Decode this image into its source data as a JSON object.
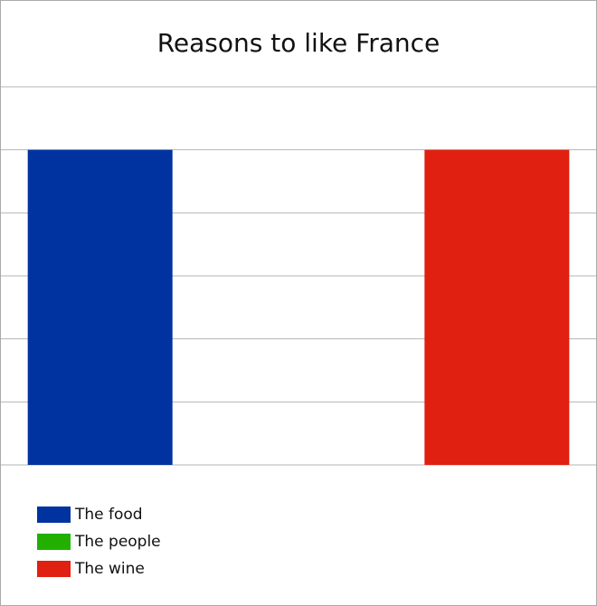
{
  "chart_data": {
    "type": "bar",
    "title": "Reasons to like France",
    "xlabel": "",
    "ylabel": "",
    "ylim": [
      0,
      6
    ],
    "grid": true,
    "legend_position": "bottom-left",
    "series": [
      {
        "name": "The food",
        "value": 5,
        "color": "#0033a0"
      },
      {
        "name": "The people",
        "value": 0,
        "color": "#22b000"
      },
      {
        "name": "The wine",
        "value": 5,
        "color": "#e02010"
      }
    ]
  }
}
